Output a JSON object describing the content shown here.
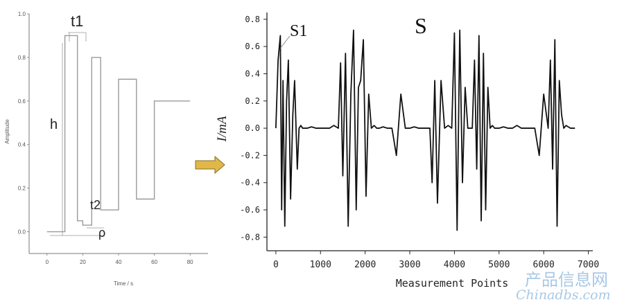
{
  "chart_data": [
    {
      "type": "line",
      "title": "",
      "xlabel": "Time / s",
      "ylabel": "Amplitude",
      "xlim": [
        -10,
        90
      ],
      "ylim": [
        -0.1,
        1.0
      ],
      "x_ticks": [
        "0",
        "20",
        "40",
        "60",
        "80"
      ],
      "y_ticks": [
        "0.0",
        "0.2",
        "0.4",
        "0.6",
        "0.8",
        "1.0"
      ],
      "series": [
        {
          "x": [
            0,
            10,
            10,
            17,
            17,
            20,
            20,
            25,
            25,
            30,
            30,
            40,
            40,
            50,
            50,
            60,
            60,
            70,
            70,
            80
          ],
          "y": [
            0.0,
            0.0,
            0.9,
            0.9,
            0.05,
            0.05,
            0.03,
            0.03,
            0.8,
            0.8,
            0.1,
            0.1,
            0.7,
            0.7,
            0.15,
            0.15,
            0.6,
            0.6,
            0.6,
            0.6
          ]
        }
      ],
      "annotations": [
        "t1",
        "h",
        "t2",
        "ρ"
      ]
    },
    {
      "type": "line",
      "title": "",
      "xlabel": "Measurement Points",
      "ylabel": "I/mA",
      "xlim": [
        -200,
        7100
      ],
      "ylim": [
        -0.9,
        0.85
      ],
      "x_ticks": [
        "0",
        "1000",
        "2000",
        "3000",
        "4000",
        "5000",
        "6000",
        "7000"
      ],
      "y_ticks": [
        "0.8",
        "0.6",
        "0.4",
        "0.2",
        "0.0",
        "-0.2",
        "-0.4",
        "-0.6",
        "-0.8"
      ],
      "annotations": [
        "S1",
        "S"
      ],
      "series": [
        {
          "x": [
            0,
            50,
            100,
            130,
            160,
            200,
            240,
            280,
            330,
            380,
            420,
            480,
            520,
            560,
            600,
            700,
            800,
            900,
            1000,
            1100,
            1200,
            1300,
            1400,
            1450,
            1500,
            1560,
            1620,
            1680,
            1740,
            1800,
            1850,
            1900,
            1960,
            2020,
            2080,
            2140,
            2200,
            2260,
            2320,
            2400,
            2500,
            2600,
            2700,
            2800,
            2900,
            3000,
            3100,
            3200,
            3300,
            3400,
            3450,
            3500,
            3560,
            3620,
            3700,
            3780,
            3860,
            3940,
            4000,
            4060,
            4120,
            4180,
            4240,
            4300,
            4350,
            4400,
            4450,
            4500,
            4550,
            4600,
            4650,
            4700,
            4750,
            4800,
            4850,
            4900,
            5000,
            5100,
            5200,
            5300,
            5400,
            5500,
            5600,
            5700,
            5800,
            5900,
            6000,
            6100,
            6150,
            6200,
            6250,
            6300,
            6350,
            6400,
            6450,
            6500,
            6600,
            6700
          ],
          "y": [
            0.0,
            0.5,
            0.68,
            -0.6,
            0.35,
            -0.72,
            0.2,
            0.5,
            -0.52,
            0.1,
            0.35,
            -0.3,
            0.0,
            0.02,
            0.0,
            0.0,
            0.01,
            0.0,
            0.0,
            0.0,
            0.0,
            0.02,
            0.0,
            0.48,
            -0.35,
            0.55,
            -0.72,
            0.25,
            0.72,
            -0.6,
            0.3,
            0.35,
            0.65,
            -0.5,
            0.25,
            0.0,
            0.02,
            0.0,
            0.0,
            0.01,
            0.0,
            0.0,
            -0.2,
            0.25,
            0.0,
            0.0,
            0.01,
            0.0,
            0.0,
            0.0,
            0.0,
            -0.4,
            0.35,
            -0.55,
            0.35,
            0.0,
            0.02,
            0.0,
            0.7,
            -0.75,
            0.72,
            -0.4,
            0.3,
            0.0,
            0.0,
            0.0,
            0.5,
            -0.3,
            0.68,
            -0.68,
            0.55,
            -0.6,
            0.3,
            0.0,
            0.02,
            0.0,
            0.0,
            0.01,
            0.0,
            0.0,
            0.02,
            0.0,
            0.0,
            0.0,
            0.0,
            -0.2,
            0.25,
            0.0,
            0.5,
            -0.3,
            0.65,
            -0.72,
            0.35,
            0.1,
            0.0,
            0.02,
            0.0,
            0.0
          ]
        }
      ]
    }
  ],
  "arrow": {
    "color": "#e0b84a",
    "stroke": "#8a6d1e"
  },
  "watermark": {
    "cn": "产品信息网",
    "en": "Chinadbs.com"
  }
}
